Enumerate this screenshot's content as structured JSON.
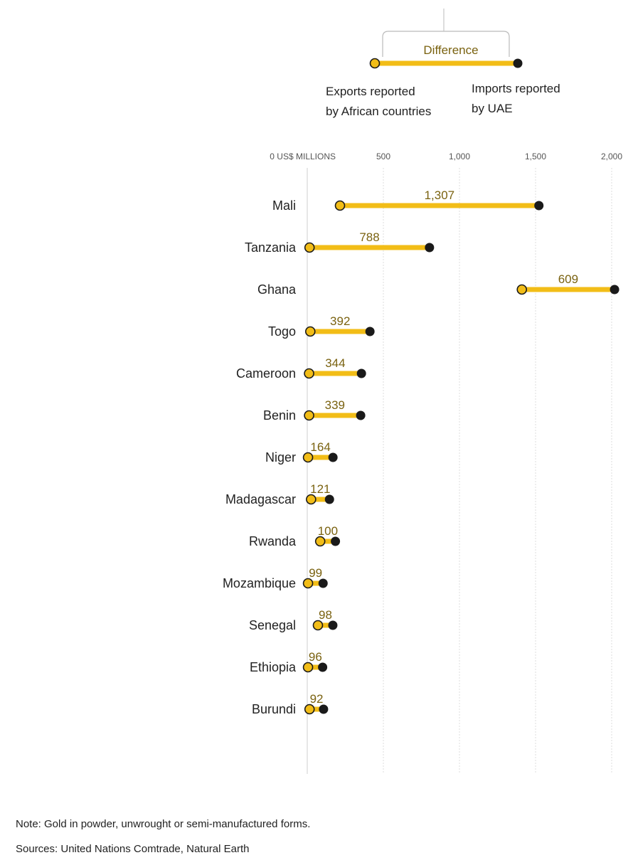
{
  "legend": {
    "difference_label": "Difference",
    "exports_line1": "Exports reported",
    "exports_line2": "by African countries",
    "imports_line1": "Imports reported",
    "imports_line2": "by UAE"
  },
  "colors": {
    "bar": "#f2bd17",
    "export_dot": "#f2bd17",
    "import_dot": "#1a1a1a",
    "label": "#7a6210"
  },
  "chart_data": {
    "type": "dumbbell",
    "xlim": [
      0,
      2000
    ],
    "ticks": [
      {
        "value": 0,
        "label": "0 US$ MILLIONS"
      },
      {
        "value": 500,
        "label": "500"
      },
      {
        "value": 1000,
        "label": "1,000"
      },
      {
        "value": 1500,
        "label": "1,500"
      },
      {
        "value": 2000,
        "label": "2,000"
      }
    ],
    "series": [
      {
        "country": "Mali",
        "exports": 215,
        "imports": 1522,
        "difference": "1,307"
      },
      {
        "country": "Tanzania",
        "exports": 15,
        "imports": 803,
        "difference": "788"
      },
      {
        "country": "Ghana",
        "exports": 1410,
        "imports": 2019,
        "difference": "609"
      },
      {
        "country": "Togo",
        "exports": 20,
        "imports": 412,
        "difference": "392"
      },
      {
        "country": "Cameroon",
        "exports": 12,
        "imports": 356,
        "difference": "344"
      },
      {
        "country": "Benin",
        "exports": 12,
        "imports": 351,
        "difference": "339"
      },
      {
        "country": "Niger",
        "exports": 5,
        "imports": 169,
        "difference": "164"
      },
      {
        "country": "Madagascar",
        "exports": 25,
        "imports": 146,
        "difference": "121"
      },
      {
        "country": "Rwanda",
        "exports": 85,
        "imports": 185,
        "difference": "100"
      },
      {
        "country": "Mozambique",
        "exports": 5,
        "imports": 104,
        "difference": "99"
      },
      {
        "country": "Senegal",
        "exports": 70,
        "imports": 168,
        "difference": "98"
      },
      {
        "country": "Ethiopia",
        "exports": 5,
        "imports": 101,
        "difference": "96"
      },
      {
        "country": "Burundi",
        "exports": 15,
        "imports": 107,
        "difference": "92"
      }
    ]
  },
  "note": "Note: Gold in powder, unwrought or semi-manufactured forms.",
  "sources": "Sources: United Nations Comtrade, Natural Earth"
}
